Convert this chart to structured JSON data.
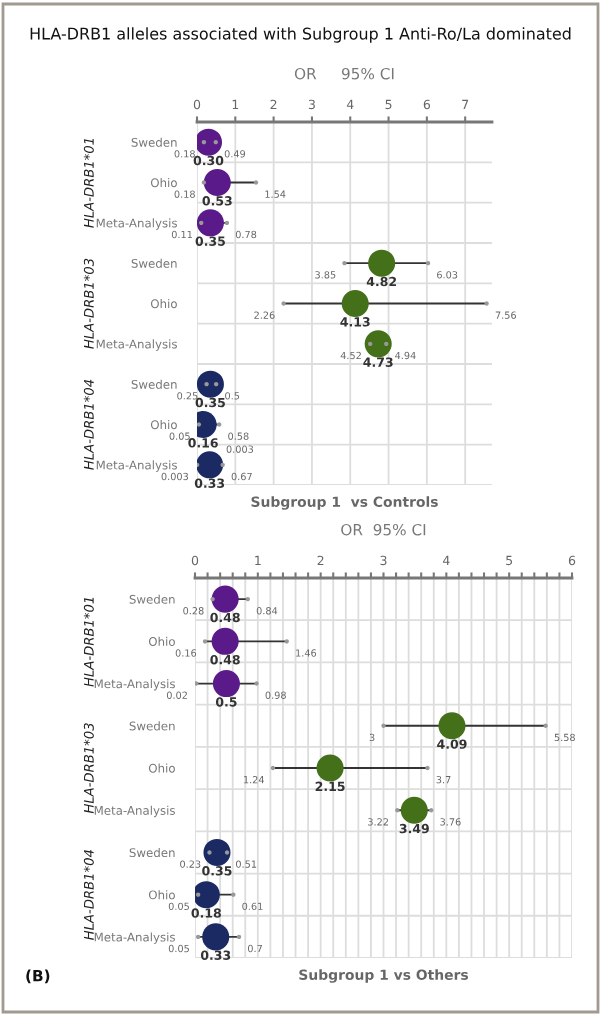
{
  "chart_data": [
    {
      "type": "scatter",
      "orientation": "horizontal",
      "title": "HLA-DRB1 alleles associated with Subgroup 1 Anti-Ro/La dominated",
      "subtitle": "OR     95% CI",
      "xlabel": "Subgroup 1  vs Controls",
      "categories": [
        "Sweden",
        "Ohio",
        "Meta-Analysis",
        "Sweden",
        "Ohio",
        "Meta-Analysis",
        "Sweden",
        "Ohio",
        "Meta-Analysis"
      ],
      "series": [
        {
          "values": [
            0.3,
            0.53,
            0.35,
            4.82,
            4.13,
            4.73,
            0.35,
            0.16,
            0.33
          ],
          "value_labels": [
            "0.30",
            "0.53",
            "0.35",
            "4.82",
            "4.13",
            "4.73",
            "0.35",
            "0.16",
            "0.33"
          ],
          "colors": [
            "#5b1a8a",
            "#5b1a8a",
            "#5b1a8a",
            "#44701a",
            "#44701a",
            "#44701a",
            "#1b2a63",
            "#1b2a63",
            "#1b2a63"
          ],
          "marker": "circle"
        },
        {
          "values": [
            0.18,
            0.18,
            0.11,
            3.85,
            2.26,
            4.52,
            0.25,
            0.05,
            0.003
          ],
          "value_labels": [
            "0.18",
            "0.18",
            "0.11",
            "3.85",
            "2.26",
            "4.52",
            "0.25",
            "0.05",
            "0.003"
          ],
          "color": "#999999",
          "marker": "circle"
        },
        {
          "values": [
            0.49,
            1.54,
            0.78,
            6.03,
            7.56,
            4.94,
            0.5,
            0.58,
            0.67
          ],
          "value_labels": [
            "0.49",
            "1.54",
            "0.78",
            "6.03",
            "7.56",
            "4.94",
            "0.5",
            "0.58",
            "0.67"
          ],
          "color": "#999999",
          "marker": "circle"
        }
      ],
      "xlim": [
        0,
        7.7
      ],
      "xticks": [
        0,
        1,
        2,
        3,
        4,
        5,
        6,
        7
      ],
      "grid": true,
      "annotations": [
        "HLA-DRB1*01",
        "HLA-DRB1*03",
        "HLA-DRB1*04",
        "0.003"
      ]
    },
    {
      "type": "scatter",
      "orientation": "horizontal",
      "subtitle": "OR  95% CI",
      "xlabel": "Subgroup 1 vs Others",
      "categories": [
        "Sweden",
        "Ohio",
        "Meta-Analysis",
        "Sweden",
        "Ohio",
        "Meta-Analysis",
        "Sweden",
        "Ohio",
        "Meta-Analysis"
      ],
      "series": [
        {
          "values": [
            0.48,
            0.48,
            0.5,
            4.09,
            2.15,
            3.49,
            0.35,
            0.18,
            0.33
          ],
          "value_labels": [
            "0.48",
            "0.48",
            "0.5",
            "4.09",
            "2.15",
            "3.49",
            "0.35",
            "0.18",
            "0.33"
          ],
          "colors": [
            "#5b1a8a",
            "#5b1a8a",
            "#5b1a8a",
            "#44701a",
            "#44701a",
            "#44701a",
            "#1b2a63",
            "#1b2a63",
            "#1b2a63"
          ],
          "marker": "circle"
        },
        {
          "values": [
            0.28,
            0.16,
            0.02,
            3,
            1.24,
            3.22,
            0.23,
            0.05,
            0.05
          ],
          "value_labels": [
            "0.28",
            "0.16",
            "0.02",
            "3",
            "1.24",
            "3.22",
            "0.23",
            "0.05",
            "0.05"
          ],
          "color": "#999999",
          "marker": "circle"
        },
        {
          "values": [
            0.84,
            1.46,
            0.98,
            5.58,
            3.7,
            3.76,
            0.51,
            0.61,
            0.7
          ],
          "value_labels": [
            "0.84",
            "1.46",
            "0.98",
            "5.58",
            "3.7",
            "3.76",
            "0.51",
            "0.61",
            "0.7"
          ],
          "color": "#999999",
          "marker": "circle"
        }
      ],
      "xlim": [
        0,
        6
      ],
      "xticks": [
        0,
        {
          "value": 0.2,
          "label": null
        },
        {
          "value": 0.4,
          "label": null
        },
        {
          "value": 0.6,
          "label": null
        },
        {
          "value": 0.8,
          "label": null
        },
        1,
        {
          "value": 1.2,
          "label": null
        },
        {
          "value": 1.4,
          "label": null
        },
        {
          "value": 1.6,
          "label": null
        },
        {
          "value": 1.8,
          "label": null
        },
        2,
        {
          "value": 2.2,
          "label": null
        },
        {
          "value": 2.4,
          "label": null
        },
        {
          "value": 2.6,
          "label": null
        },
        {
          "value": 2.8,
          "label": null
        },
        3,
        {
          "value": 3.2,
          "label": null
        },
        {
          "value": 3.4,
          "label": null
        },
        {
          "value": 3.6,
          "label": null
        },
        {
          "value": 3.8,
          "label": null
        },
        4,
        {
          "value": 4.2,
          "label": null
        },
        {
          "value": 4.4,
          "label": null
        },
        {
          "value": 4.6,
          "label": null
        },
        {
          "value": 4.8,
          "label": null
        },
        5,
        {
          "value": 5.2,
          "label": null
        },
        {
          "value": 5.4,
          "label": null
        },
        {
          "value": 5.6,
          "label": null
        },
        {
          "value": 5.8,
          "label": null
        },
        6
      ],
      "grid": true,
      "annotations": [
        "HLA-DRB1*01",
        "HLA-DRB1*03",
        "HLA-DRB1*04",
        "(B)"
      ]
    }
  ]
}
